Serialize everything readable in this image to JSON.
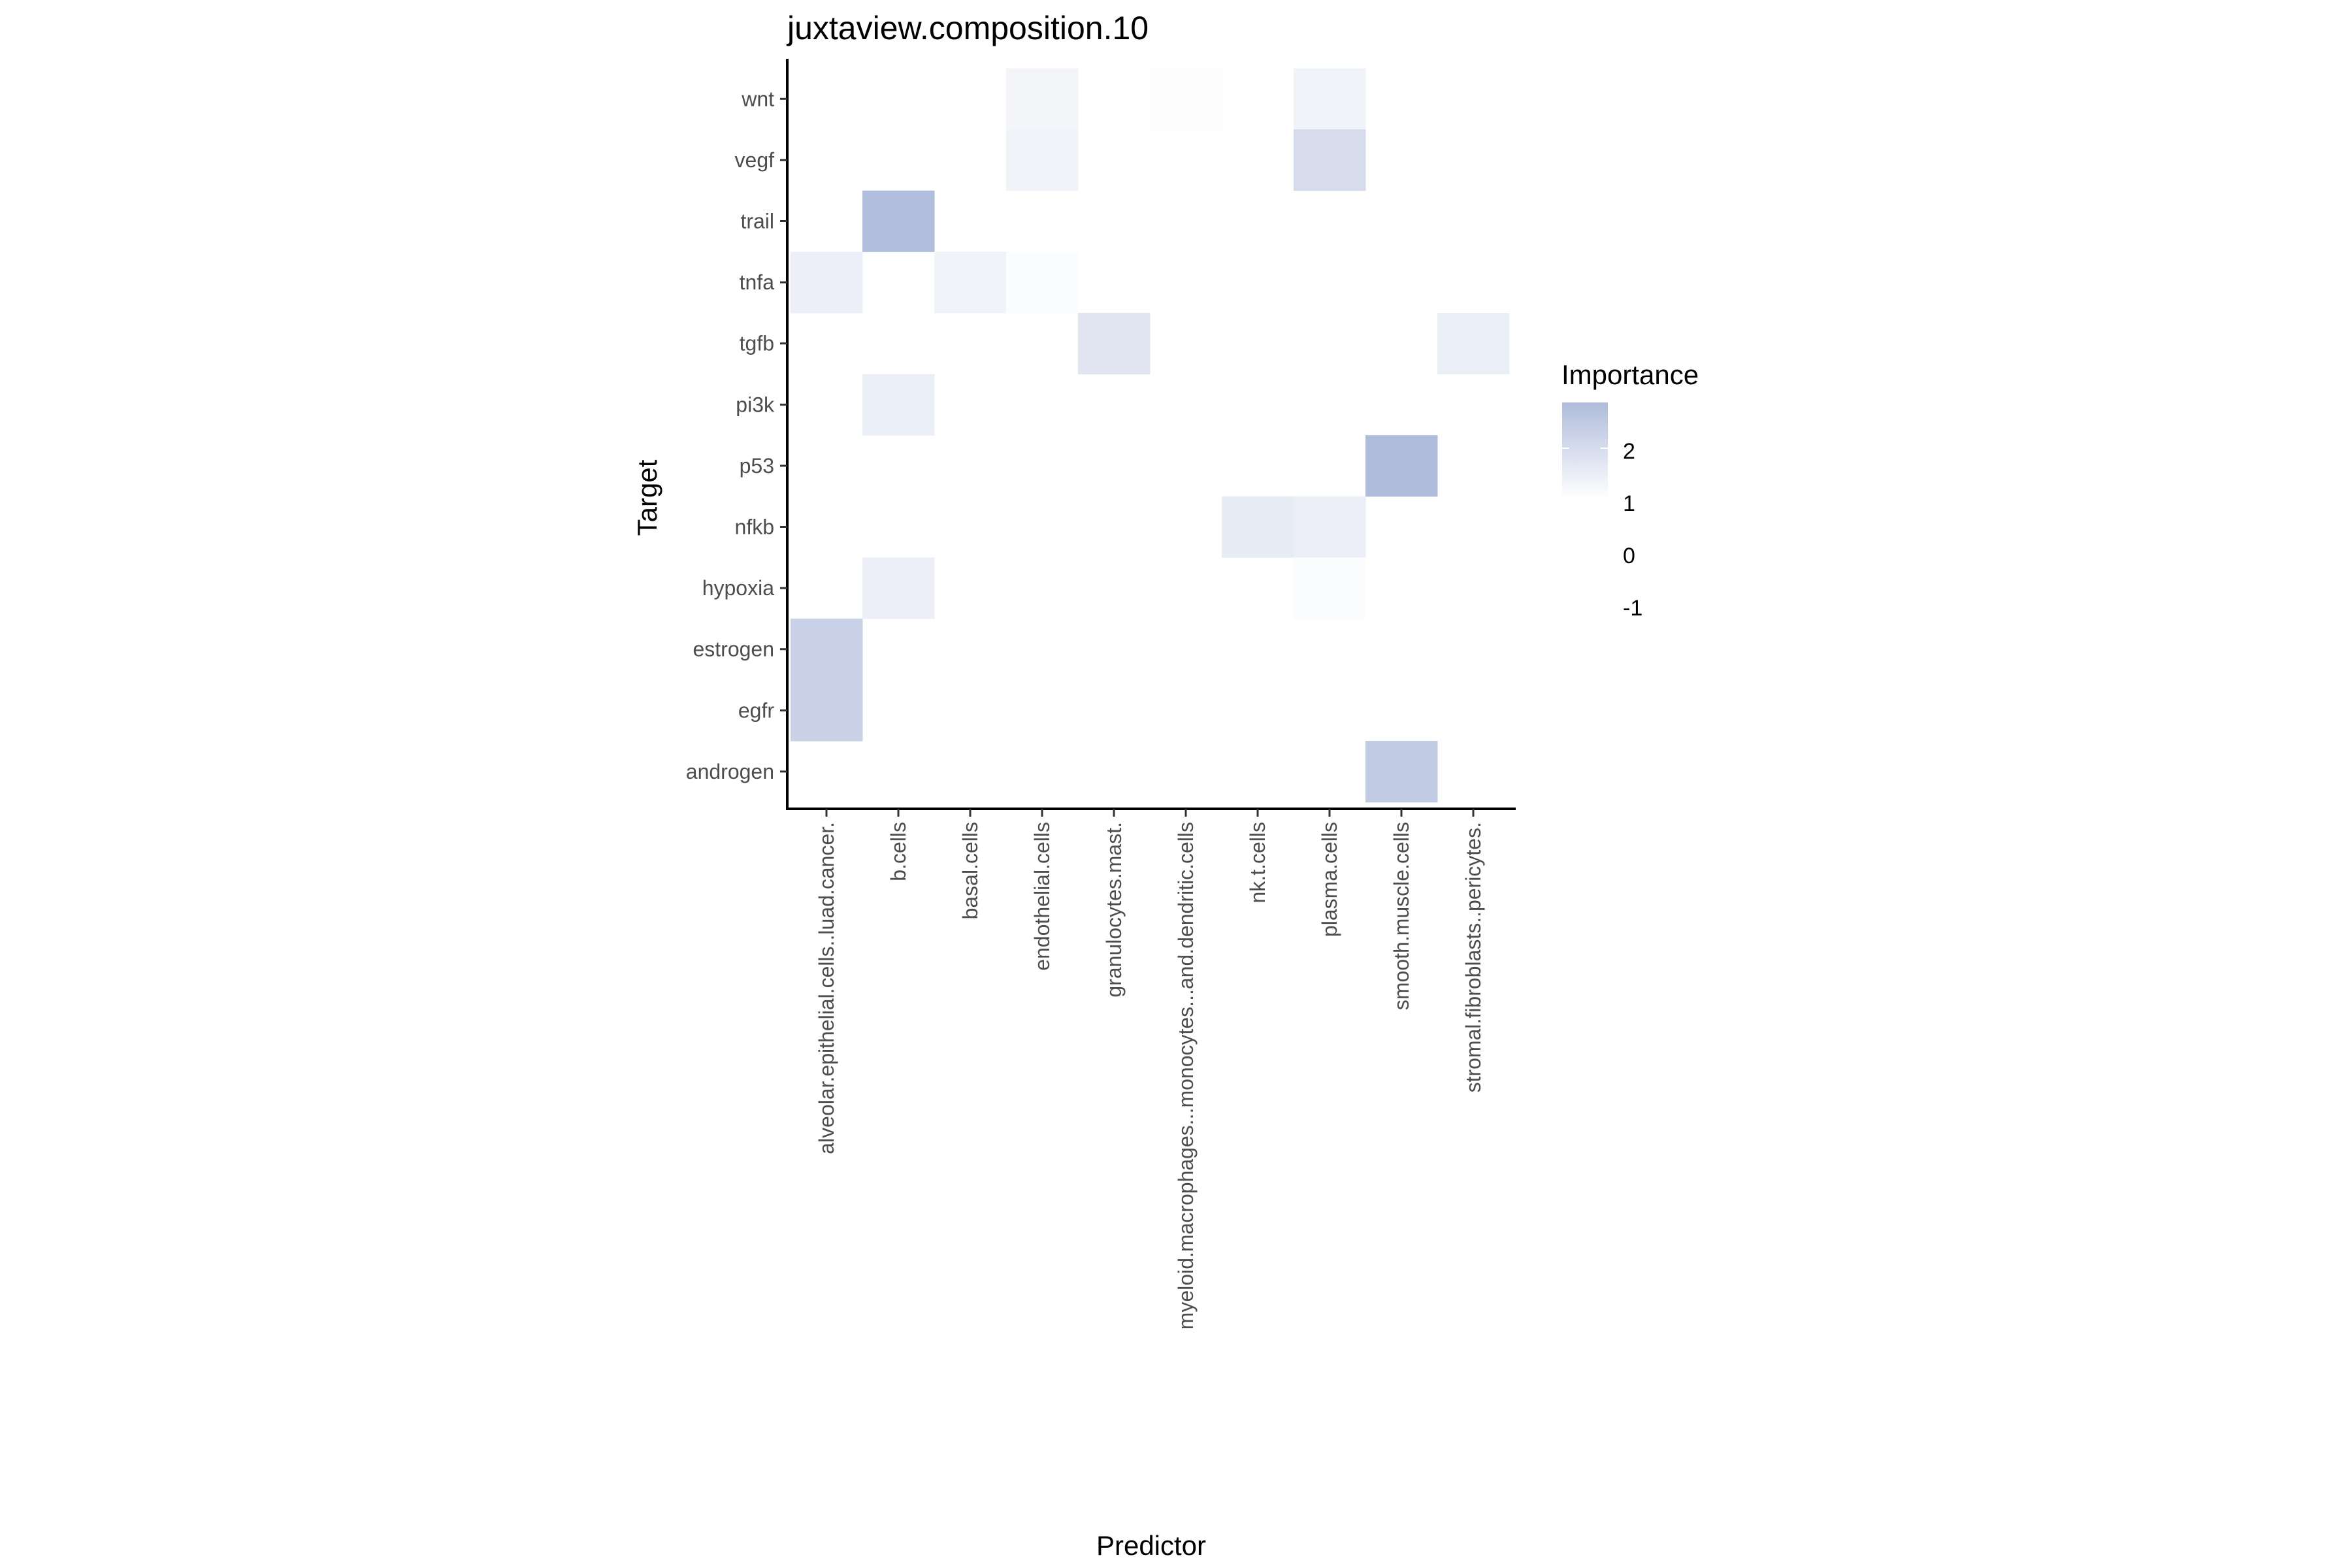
{
  "chart_data": {
    "type": "heatmap",
    "title": "juxtaview.composition.10",
    "xlabel": "Predictor",
    "ylabel": "Target",
    "x_categories": [
      "alveolar.epithelial.cells..luad.cancer.",
      "b.cells",
      "basal.cells",
      "endothelial.cells",
      "granulocytes.mast.",
      "myeloid.macrophages...monocytes...and.dendritic.cells",
      "nk.t.cells",
      "plasma.cells",
      "smooth.muscle.cells",
      "stromal.fibroblasts..pericytes."
    ],
    "y_categories": [
      "wnt",
      "vegf",
      "trail",
      "tnfa",
      "tgfb",
      "pi3k",
      "p53",
      "nfkb",
      "hypoxia",
      "estrogen",
      "egfr",
      "androgen"
    ],
    "values": [
      [
        null,
        null,
        null,
        1.3,
        null,
        1.05,
        null,
        1.35,
        null,
        null
      ],
      [
        null,
        null,
        null,
        1.35,
        null,
        null,
        null,
        2.0,
        null,
        null
      ],
      [
        null,
        2.9,
        null,
        null,
        null,
        null,
        null,
        null,
        null,
        null
      ],
      [
        1.45,
        null,
        1.35,
        1.1,
        null,
        null,
        null,
        null,
        null,
        null
      ],
      [
        null,
        null,
        null,
        null,
        1.75,
        null,
        null,
        null,
        null,
        1.5
      ],
      [
        null,
        1.5,
        null,
        null,
        null,
        null,
        1.02,
        null,
        null,
        null
      ],
      [
        null,
        null,
        null,
        null,
        null,
        null,
        null,
        null,
        2.93,
        null
      ],
      [
        null,
        null,
        null,
        null,
        null,
        null,
        1.55,
        1.45,
        null,
        null
      ],
      [
        null,
        1.45,
        null,
        null,
        null,
        null,
        null,
        1.1,
        null,
        null
      ],
      [
        2.3,
        null,
        null,
        null,
        null,
        null,
        null,
        null,
        null,
        null
      ],
      [
        2.3,
        null,
        null,
        null,
        null,
        null,
        null,
        null,
        null,
        null
      ],
      [
        null,
        null,
        null,
        null,
        null,
        null,
        null,
        null,
        2.5,
        null
      ]
    ],
    "legend": {
      "title": "Importance",
      "ticks": [
        "2",
        "1",
        "0",
        "-1"
      ],
      "placement": "right",
      "range": [
        1,
        2.93
      ],
      "low_color": "#FFFFFF",
      "high_color": "#AFBCDB"
    },
    "grid": false
  }
}
